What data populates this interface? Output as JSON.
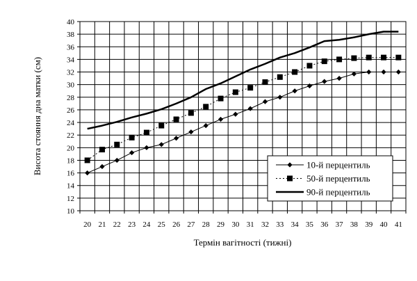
{
  "chart_data": {
    "type": "line",
    "title": "",
    "xlabel": "Термін вагітності (тижні)",
    "ylabel": "Висота стояння дна матки (см)",
    "x": [
      20,
      21,
      22,
      23,
      24,
      25,
      26,
      27,
      28,
      29,
      30,
      31,
      32,
      33,
      34,
      35,
      36,
      37,
      38,
      39,
      40,
      41
    ],
    "ylim": [
      10,
      40
    ],
    "yticks": [
      10,
      12,
      14,
      16,
      18,
      20,
      22,
      24,
      26,
      28,
      30,
      32,
      34,
      36,
      38,
      40
    ],
    "grid": true,
    "legend_position": "lower-right",
    "series": [
      {
        "name": "10-й перцентиль",
        "marker": "diamond",
        "line": "solid-thin",
        "values": [
          16,
          17,
          18,
          19.2,
          20,
          20.5,
          21.5,
          22.5,
          23.5,
          24.5,
          25.3,
          26.2,
          27.3,
          28,
          29,
          29.8,
          30.5,
          31,
          31.7,
          32,
          32,
          32
        ]
      },
      {
        "name": "50-й перцентиль",
        "marker": "square",
        "line": "dotted",
        "values": [
          18,
          19.7,
          20.5,
          21.6,
          22.4,
          23.5,
          24.5,
          25.5,
          26.5,
          27.8,
          28.8,
          29.5,
          30.4,
          31.2,
          32,
          33,
          33.7,
          34,
          34.2,
          34.3,
          34.3,
          34.3
        ]
      },
      {
        "name": "90-й перцентиль",
        "marker": "none",
        "line": "solid-thick",
        "values": [
          23,
          23.5,
          24.1,
          24.8,
          25.4,
          26.1,
          27,
          28,
          29.3,
          30.2,
          31.3,
          32.4,
          33.3,
          34.3,
          35,
          35.9,
          36.9,
          37.1,
          37.5,
          38,
          38.4,
          38.4
        ]
      }
    ]
  }
}
